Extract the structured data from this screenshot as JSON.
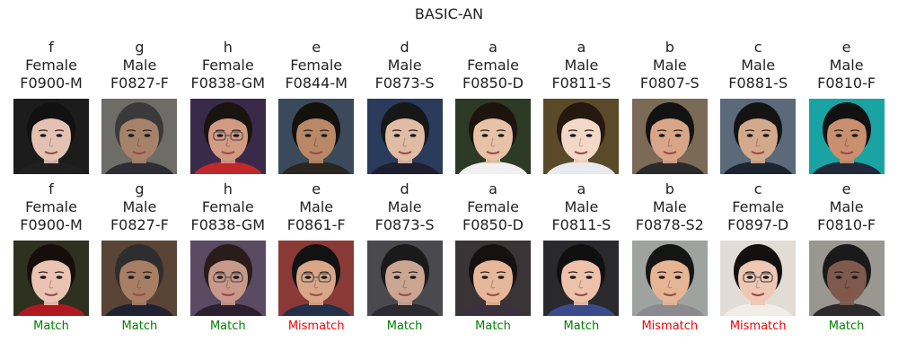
{
  "title": "BASIC-AN",
  "colors": {
    "match": "#008000",
    "mismatch": "#ff0000",
    "text": "#222222"
  },
  "top_row": [
    {
      "group": "f",
      "gender": "Female",
      "id": "F0900-M",
      "bg": "#1c1c1c",
      "skin": "#e3c2b4",
      "hair": "#111111",
      "shirt": "#202020"
    },
    {
      "group": "g",
      "gender": "Male",
      "id": "F0827-F",
      "bg": "#6e6c66",
      "skin": "#a7826a",
      "hair": "#3a3a3a",
      "shirt": "#2d2e35"
    },
    {
      "group": "h",
      "gender": "Female",
      "id": "F0838-GM",
      "bg": "#3a2a4a",
      "skin": "#d39a82",
      "hair": "#1a1410",
      "shirt": "#c0282a"
    },
    {
      "group": "e",
      "gender": "Female",
      "id": "F0844-M",
      "bg": "#3a4a5a",
      "skin": "#b98867",
      "hair": "#14100c",
      "shirt": "#2a2520"
    },
    {
      "group": "d",
      "gender": "Male",
      "id": "F0873-S",
      "bg": "#2a3b5c",
      "skin": "#e0bca4",
      "hair": "#171717",
      "shirt": "#1e2030"
    },
    {
      "group": "a",
      "gender": "Female",
      "id": "F0850-D",
      "bg": "#2d3a26",
      "skin": "#e7c2a6",
      "hair": "#1e140e",
      "shirt": "#f0f0f0"
    },
    {
      "group": "a",
      "gender": "Male",
      "id": "F0811-S",
      "bg": "#5a4a2a",
      "skin": "#f3d8c8",
      "hair": "#24180f",
      "shirt": "#e9e9f0"
    },
    {
      "group": "b",
      "gender": "Male",
      "id": "F0807-S",
      "bg": "#7a6a56",
      "skin": "#d8a588",
      "hair": "#121212",
      "shirt": "#2a2a2a"
    },
    {
      "group": "c",
      "gender": "Male",
      "id": "F0881-S",
      "bg": "#5a6a7a",
      "skin": "#d3a98c",
      "hair": "#141414",
      "shirt": "#1c2430"
    },
    {
      "group": "e",
      "gender": "Male",
      "id": "F0810-F",
      "bg": "#1aa3a3",
      "skin": "#c98f6f",
      "hair": "#111111",
      "shirt": "#202a3a"
    }
  ],
  "bottom_row": [
    {
      "group": "f",
      "gender": "Female",
      "id": "F0900-M",
      "result": "Match",
      "status": "match",
      "bg": "#2e3020",
      "skin": "#ebc3b3",
      "hair": "#150e0b",
      "shirt": "#b01820"
    },
    {
      "group": "g",
      "gender": "Male",
      "id": "F0827-F",
      "result": "Match",
      "status": "match",
      "bg": "#5a4436",
      "skin": "#a87e64",
      "hair": "#2e2e2e",
      "shirt": "#202233"
    },
    {
      "group": "h",
      "gender": "Female",
      "id": "F0838-GM",
      "result": "Match",
      "status": "match",
      "bg": "#5a4a62",
      "skin": "#c8988a",
      "hair": "#2a1c18",
      "shirt": "#2a2030"
    },
    {
      "group": "e",
      "gender": "Male",
      "id": "F0861-F",
      "result": "Mismatch",
      "status": "mismatch",
      "bg": "#8a3a36",
      "skin": "#d9a788",
      "hair": "#121212",
      "shirt": "#24304a"
    },
    {
      "group": "d",
      "gender": "Male",
      "id": "F0873-S",
      "result": "Match",
      "status": "match",
      "bg": "#4a4a4e",
      "skin": "#caa592",
      "hair": "#1a1a1a",
      "shirt": "#2a2a30"
    },
    {
      "group": "a",
      "gender": "Female",
      "id": "F0850-D",
      "result": "Match",
      "status": "match",
      "bg": "#3a3436",
      "skin": "#e7b79a",
      "hair": "#161010",
      "shirt": "#3a3040"
    },
    {
      "group": "a",
      "gender": "Male",
      "id": "F0811-S",
      "result": "Match",
      "status": "match",
      "bg": "#2a2a2e",
      "skin": "#eec2aa",
      "hair": "#101010",
      "shirt": "#3a4a8a"
    },
    {
      "group": "b",
      "gender": "Male",
      "id": "F0878-S2",
      "result": "Mismatch",
      "status": "mismatch",
      "bg": "#9ea3a0",
      "skin": "#e6b594",
      "hair": "#151515",
      "shirt": "#8a8a90"
    },
    {
      "group": "c",
      "gender": "Female",
      "id": "F0897-D",
      "result": "Mismatch",
      "status": "mismatch",
      "bg": "#e2dcd6",
      "skin": "#efc8b4",
      "hair": "#141010",
      "shirt": "#f0ece6"
    },
    {
      "group": "e",
      "gender": "Male",
      "id": "F0810-F",
      "result": "Match",
      "status": "match",
      "bg": "#9a9690",
      "skin": "#7e5a4c",
      "hair": "#1a1a1a",
      "shirt": "#2a2a2a"
    }
  ]
}
